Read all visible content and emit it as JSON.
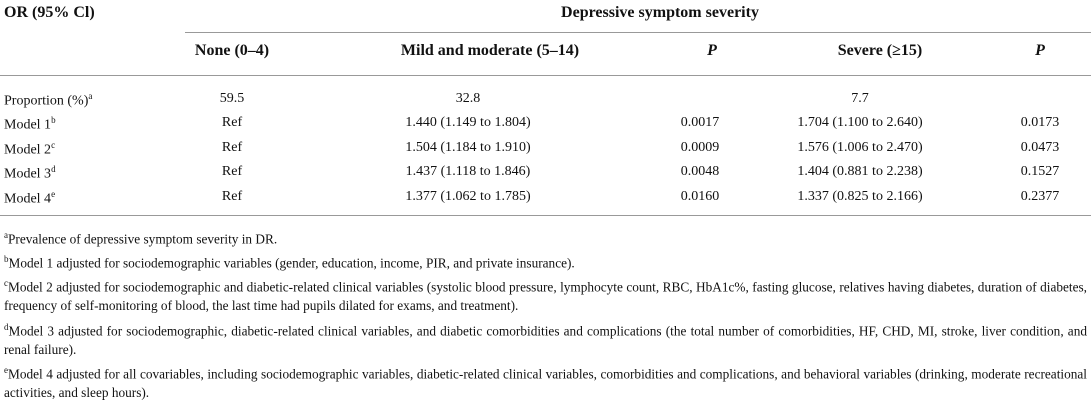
{
  "table": {
    "title": "OR (95% Cl)",
    "group": "Depressive symptom severity",
    "columns": {
      "none": "None (0–4)",
      "mild": "Mild and moderate (5–14)",
      "p_mild": "P",
      "severe": "Severe (≥15)",
      "p_severe": "P"
    },
    "proportion": {
      "label": "Proportion (%)",
      "sup": "a",
      "none": "59.5",
      "mild": "32.8",
      "severe": "7.7"
    },
    "rows": [
      {
        "label": "Model 1",
        "sup": "b",
        "none": "Ref",
        "mild": "1.440 (1.149 to 1.804)",
        "p_mild": "0.0017",
        "severe": "1.704 (1.100 to 2.640)",
        "p_severe": "0.0173"
      },
      {
        "label": "Model 2",
        "sup": "c",
        "none": "Ref",
        "mild": "1.504 (1.184 to 1.910)",
        "p_mild": "0.0009",
        "severe": "1.576 (1.006 to 2.470)",
        "p_severe": "0.0473"
      },
      {
        "label": "Model 3",
        "sup": "d",
        "none": "Ref",
        "mild": "1.437 (1.118 to 1.846)",
        "p_mild": "0.0048",
        "severe": "1.404 (0.881 to 2.238)",
        "p_severe": "0.1527"
      },
      {
        "label": "Model 4",
        "sup": "e",
        "none": "Ref",
        "mild": "1.377 (1.062 to 1.785)",
        "p_mild": "0.0160",
        "severe": "1.337 (0.825 to 2.166)",
        "p_severe": "0.2377"
      }
    ]
  },
  "footnotes": [
    {
      "mark": "a",
      "text": "Prevalence of depressive symptom severity in DR."
    },
    {
      "mark": "b",
      "text": "Model 1 adjusted for sociodemographic variables (gender, education, income, PIR, and private insurance)."
    },
    {
      "mark": "c",
      "text": "Model 2 adjusted for sociodemographic and diabetic-related clinical variables (systolic blood pressure, lymphocyte count, RBC, HbA1c%, fasting glucose, relatives having diabetes, duration of diabetes, frequency of self-monitoring of blood, the last time had pupils dilated for exams, and treatment)."
    },
    {
      "mark": "d",
      "text": "Model 3 adjusted for sociodemographic, diabetic-related clinical variables, and diabetic comorbidities and complications (the total number of comorbidities, HF, CHD, MI, stroke, liver condition, and renal failure)."
    },
    {
      "mark": "e",
      "text": "Model 4 adjusted for all covariables, including sociodemographic variables, diabetic-related clinical variables, comorbidities and complications, and behavioral variables (drinking, moderate recreational activities, and sleep hours)."
    }
  ]
}
